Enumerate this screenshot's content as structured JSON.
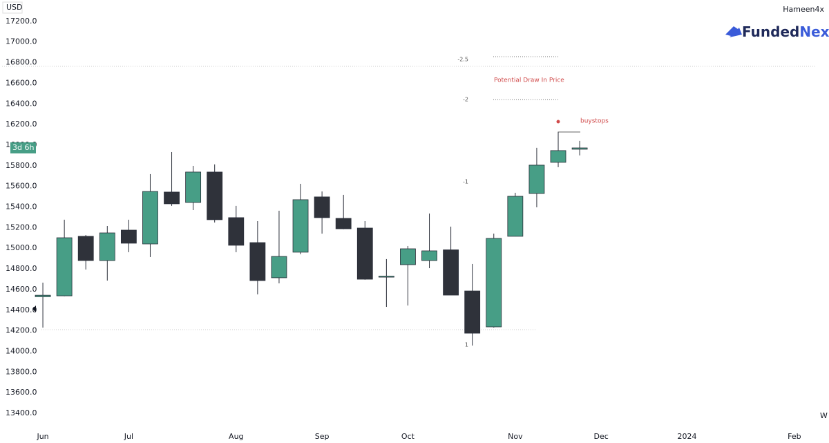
{
  "chart_data": {
    "type": "candlestick",
    "currency": "USD",
    "author": "Hameen4x",
    "brand": [
      "Funded",
      "Next"
    ],
    "interval": "W",
    "countdown": "3d 6h",
    "x": [
      0,
      1,
      2,
      3,
      4,
      5,
      6,
      7,
      8,
      9,
      10,
      11,
      12,
      13,
      14,
      15,
      16,
      17,
      18,
      19,
      20,
      21,
      22,
      23,
      24,
      25
    ],
    "open": [
      14530,
      14539,
      15116,
      14881,
      15176,
      15042,
      15545,
      15444,
      15739,
      15297,
      15055,
      14714,
      14962,
      15498,
      15290,
      15196,
      14722,
      14841,
      14881,
      14985,
      14586,
      14238,
      15116,
      15531,
      15833,
      15960
    ],
    "high": [
      14667,
      15277,
      15129,
      15216,
      15277,
      15719,
      15933,
      15799,
      15813,
      15411,
      15263,
      15364,
      15625,
      15551,
      15518,
      15263,
      14895,
      15022,
      15337,
      15210,
      14848,
      15142,
      15538,
      15974,
      16128,
      16041
    ],
    "low": [
      14231,
      14535,
      14794,
      14687,
      14962,
      14915,
      15411,
      15370,
      15250,
      14962,
      14553,
      14660,
      14942,
      15142,
      15185,
      14695,
      14432,
      14445,
      14807,
      14546,
      14057,
      14231,
      15116,
      15397,
      15786,
      15900
    ],
    "close": [
      14545,
      15102,
      14881,
      15149,
      15049,
      15551,
      15431,
      15739,
      15277,
      15029,
      14687,
      14921,
      15471,
      15297,
      15189,
      14700,
      14730,
      14995,
      14975,
      14546,
      14177,
      15096,
      15504,
      15806,
      15947,
      15973
    ],
    "up_color": "#479e86",
    "down_color": "#2f323a",
    "xlim": [
      -1.9,
      36
    ],
    "ylim": [
      13300,
      17400
    ],
    "xticks": [
      {
        "value": 0,
        "label": "Jun"
      },
      {
        "value": 4,
        "label": "Jul"
      },
      {
        "value": 9,
        "label": "Aug"
      },
      {
        "value": 13,
        "label": "Sep"
      },
      {
        "value": 17,
        "label": "Oct"
      },
      {
        "value": 22,
        "label": "Nov"
      },
      {
        "value": 26,
        "label": "Dec"
      },
      {
        "value": 30,
        "label": "2024"
      },
      {
        "value": 35,
        "label": "Feb"
      }
    ],
    "yticks": [
      {
        "value": 13400,
        "label": "13400.0"
      },
      {
        "value": 13600,
        "label": "13600.0"
      },
      {
        "value": 13800,
        "label": "13800.0"
      },
      {
        "value": 14000,
        "label": "14000.0"
      },
      {
        "value": 14200,
        "label": "14200.0"
      },
      {
        "value": 14400,
        "label": "14400.0"
      },
      {
        "value": 14600,
        "label": "14600.0"
      },
      {
        "value": 14800,
        "label": "14800.0"
      },
      {
        "value": 15000,
        "label": "15000.0"
      },
      {
        "value": 15200,
        "label": "15200.0"
      },
      {
        "value": 15400,
        "label": "15400.0"
      },
      {
        "value": 15600,
        "label": "15600.0"
      },
      {
        "value": 15800,
        "label": "15800.0"
      },
      {
        "value": 16000,
        "label": "16000.0"
      },
      {
        "value": 16200,
        "label": "16200.0"
      },
      {
        "value": 16400,
        "label": "16400.0"
      },
      {
        "value": 16600,
        "label": "16600.0"
      },
      {
        "value": 16800,
        "label": "16800.0"
      },
      {
        "value": 17000,
        "label": "17000.0"
      },
      {
        "value": 17200,
        "label": "17200.0"
      }
    ],
    "annotations": [
      "-2.5",
      "Potential Draw In Price",
      "-2",
      "buystops",
      "-1",
      "1"
    ]
  }
}
